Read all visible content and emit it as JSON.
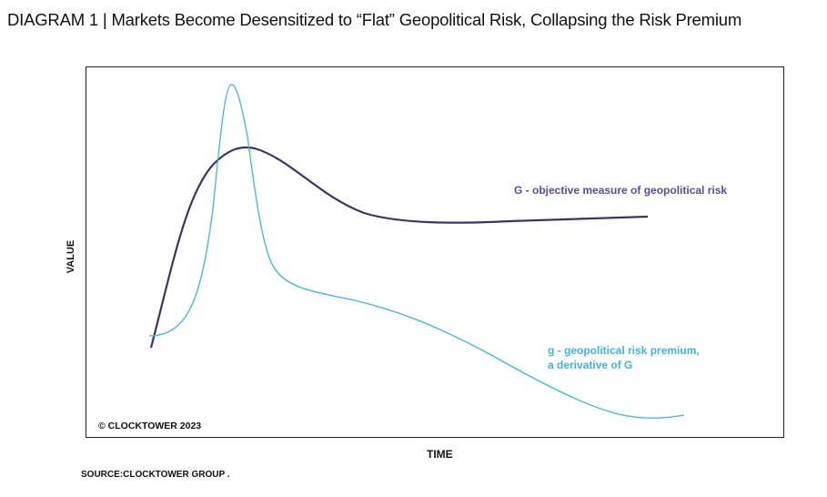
{
  "title": "DIAGRAM 1 | Markets Become Desensitized to “Flat” Geopolitical Risk, Collapsing the Risk Premium",
  "source": "SOURCE:CLOCKTOWER GROUP .",
  "copyright": "© CLOCKTOWER 2023",
  "chart_data": {
    "type": "line",
    "xlabel": "TIME",
    "ylabel": "VALUE",
    "grid": false,
    "x": [
      0.0,
      0.05,
      0.1,
      0.15,
      0.18,
      0.2,
      0.23,
      0.27,
      0.3,
      0.35,
      0.4,
      0.45,
      0.5,
      0.55,
      0.6,
      0.65,
      0.7,
      0.75,
      0.8,
      0.85,
      0.9,
      0.95,
      1.0
    ],
    "series": [
      {
        "name": "G - objective measure of geopolitical risk",
        "label_lines": [
          "G - objective measure of geopolitical risk"
        ],
        "color": "#3b3466",
        "values": [
          0.24,
          0.55,
          0.72,
          0.78,
          0.76,
          0.73,
          0.68,
          0.63,
          0.61,
          0.6,
          0.59,
          0.59,
          0.59,
          0.6,
          0.605,
          0.61,
          0.62,
          0.63,
          0.635,
          0.64,
          0.645,
          null,
          null
        ]
      },
      {
        "name": "g - geopolitical risk premium, a derivative of G",
        "label_lines": [
          "g - geopolitical risk premium,",
          "a derivative of G"
        ],
        "color": "#3bb6e4",
        "values": [
          0.27,
          0.3,
          0.65,
          0.95,
          0.85,
          0.55,
          0.45,
          0.41,
          0.395,
          0.38,
          0.36,
          0.33,
          0.29,
          0.25,
          0.21,
          0.17,
          0.13,
          0.09,
          0.07,
          0.06,
          0.06,
          0.065,
          null
        ]
      }
    ]
  }
}
